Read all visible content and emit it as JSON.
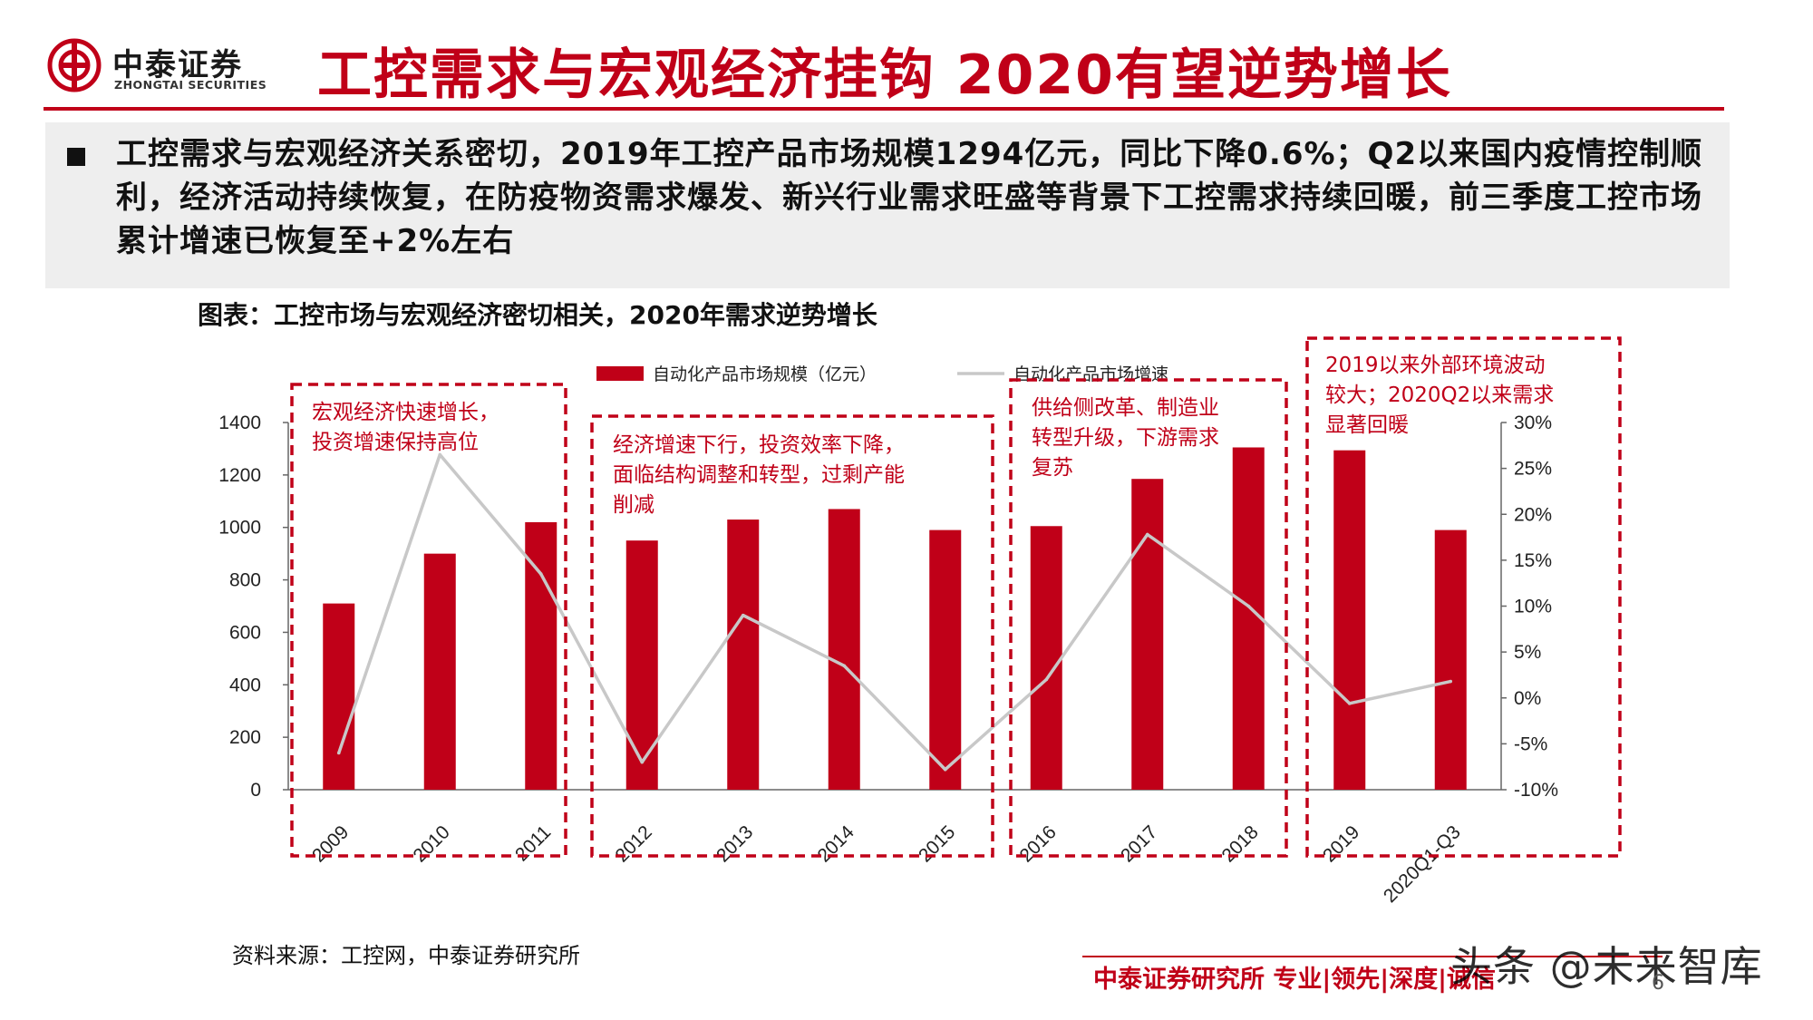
{
  "header": {
    "logo_cn": "中泰证券",
    "logo_en": "ZHONGTAI SECURITIES",
    "title": "工控需求与宏观经济挂钩 2020有望逆势增长"
  },
  "summary": {
    "text": "工控需求与宏观经济关系密切，2019年工控产品市场规模1294亿元，同比下降0.6%；Q2以来国内疫情控制顺利，经济活动持续恢复，在防疫物资需求爆发、新兴行业需求旺盛等背景下工控需求持续回暖，前三季度工控市场累计增速已恢复至+2%左右"
  },
  "figure": {
    "caption": "图表：工控市场与宏观经济密切相关，2020年需求逆势增长"
  },
  "chart_data": {
    "type": "bar",
    "categories": [
      "2009",
      "2010",
      "2011",
      "2012",
      "2013",
      "2014",
      "2015",
      "2016",
      "2017",
      "2018",
      "2019",
      "2020Q1-Q3"
    ],
    "series": [
      {
        "name": "自动化产品市场规模（亿元）",
        "type": "bar",
        "axis": "left",
        "color": "#c00018",
        "values": [
          710,
          900,
          1020,
          950,
          1030,
          1070,
          990,
          1005,
          1185,
          1305,
          1294,
          990
        ]
      },
      {
        "name": "自动化产品市场增速",
        "type": "line",
        "axis": "right",
        "color": "#c8c8c8",
        "values": [
          -6.0,
          26.5,
          13.5,
          -7.0,
          9.0,
          3.5,
          -7.8,
          2.0,
          17.8,
          10.0,
          -0.6,
          1.8
        ]
      }
    ],
    "y_left": {
      "min": 0,
      "max": 1400,
      "ticks": [
        "0",
        "200",
        "400",
        "600",
        "800",
        "1000",
        "1200",
        "1400"
      ]
    },
    "y_right": {
      "min": -10,
      "max": 30,
      "ticks": [
        "-10%",
        "-5%",
        "0%",
        "5%",
        "10%",
        "15%",
        "20%",
        "25%",
        "30%"
      ]
    },
    "legend_position": "top",
    "grid": false,
    "annotations": [
      {
        "lines": [
          "宏观经济快速增长，",
          "投资增速保持高位"
        ]
      },
      {
        "lines": [
          "经济增速下行，投资效率下降，",
          "面临结构调整和转型，过剩产能",
          "削减"
        ]
      },
      {
        "lines": [
          "供给侧改革、制造业",
          "转型升级，下游需求",
          "复苏"
        ]
      },
      {
        "lines": [
          "2019以来外部环境波动",
          "较大；2020Q2以来需求",
          "显著回暖"
        ]
      }
    ],
    "annotation_color": "#c00018"
  },
  "footer": {
    "source": "资料来源：工控网，中泰证券研究所",
    "tagline": "中泰证券研究所 专业|领先|深度|诚信",
    "watermark": "头条 @未来智库",
    "page": "6"
  }
}
